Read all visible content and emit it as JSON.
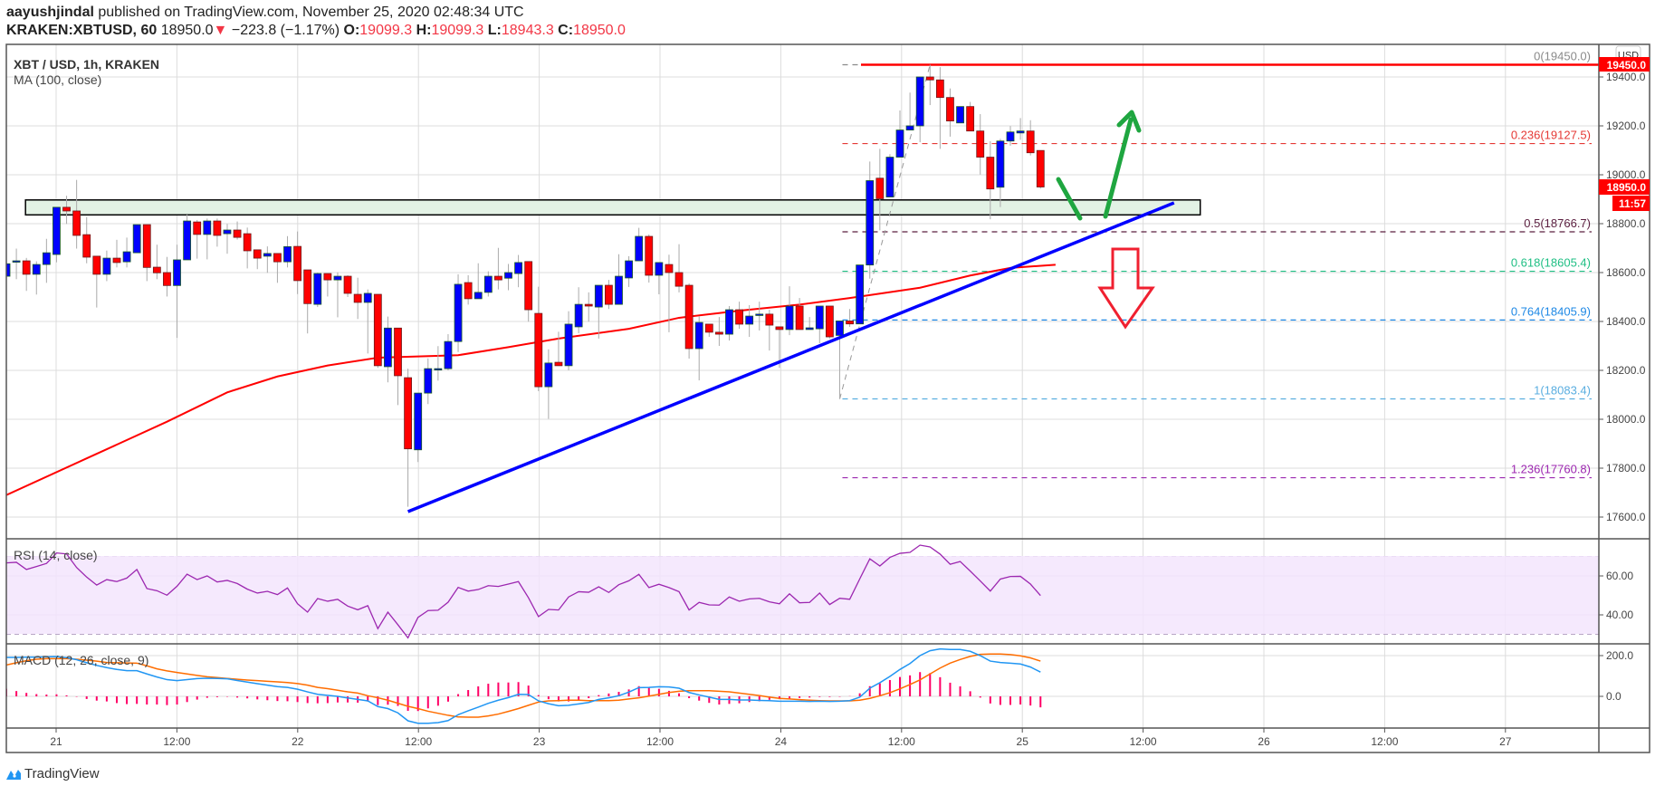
{
  "header": {
    "author": "aayushjindal",
    "published": "published on TradingView.com, November 25, 2020 02:48:34 UTC",
    "symbol": "KRAKEN:XBTUSD, 60",
    "last": "18950.0",
    "change": "−223.8 (−1.17%)",
    "o_label": "O:",
    "o": "19099.3",
    "h_label": "H:",
    "h": "19099.3",
    "l_label": "L:",
    "l": "18943.3",
    "c_label": "C:",
    "c": "18950.0"
  },
  "legend": {
    "title": "XBT / USD, 1h, KRAKEN",
    "ma": "MA (100, close)",
    "rsi": "RSI (14, close)",
    "macd": "MACD (12, 26, close, 9)"
  },
  "price_axis": {
    "currency": "USD",
    "ticks": [
      "19400.0",
      "19200.0",
      "19000.0",
      "18800.0",
      "18600.0",
      "18400.0",
      "18200.0",
      "18000.0",
      "17800.0",
      "17600.0"
    ],
    "high_badge": "19450.0",
    "last_badge": "18950.0",
    "countdown": "11:57"
  },
  "rsi_axis": {
    "ticks": [
      "60.00",
      "40.00"
    ]
  },
  "macd_axis": {
    "ticks": [
      "200.0",
      "0.0"
    ]
  },
  "time_axis": {
    "labels": [
      "21",
      "12:00",
      "22",
      "12:00",
      "23",
      "12:00",
      "24",
      "12:00",
      "25",
      "12:00",
      "26",
      "12:00",
      "27"
    ]
  },
  "footer": {
    "brand": "TradingView"
  },
  "colors": {
    "up": "#0000ff",
    "down": "#ff0000",
    "up_border": "#1b5e20",
    "down_border": "#6d1b1b",
    "ma": "#ff0000",
    "trendline": "#0000ff",
    "zone_fill": "#e3f2e5",
    "rsi_line": "#9c27b0",
    "rsi_band": "#f3e5fd",
    "macd": "#2196f3",
    "signal": "#ff6d00",
    "histogram": "#ff0066",
    "arrow_green": "#1fa640",
    "arrow_red": "#f02030",
    "resistance": "#ff0000"
  },
  "chart_data": {
    "type": "candlestick",
    "title": "XBT / USD, 1h, KRAKEN",
    "ylim": [
      17450,
      19560
    ],
    "candles_ohlc": [
      [
        18585,
        18650,
        18570,
        18636
      ],
      [
        18648,
        18698,
        18573,
        18648
      ],
      [
        18648,
        18660,
        18525,
        18593
      ],
      [
        18593,
        18646,
        18510,
        18633
      ],
      [
        18633,
        18738,
        18558,
        18681
      ],
      [
        18674,
        18867,
        18642,
        18867
      ],
      [
        18867,
        18914,
        18799,
        18852
      ],
      [
        18852,
        18979,
        18698,
        18752
      ],
      [
        18755,
        18827,
        18638,
        18663
      ],
      [
        18667,
        18667,
        18457,
        18593
      ],
      [
        18593,
        18690,
        18565,
        18659
      ],
      [
        18659,
        18734,
        18621,
        18641
      ],
      [
        18644,
        18743,
        18621,
        18685
      ],
      [
        18681,
        18796,
        18681,
        18796
      ],
      [
        18796,
        18796,
        18565,
        18621
      ],
      [
        18622,
        18714,
        18573,
        18599
      ],
      [
        18600,
        18664,
        18502,
        18547
      ],
      [
        18547,
        18714,
        18333,
        18652
      ],
      [
        18652,
        18837,
        18652,
        18811
      ],
      [
        18807,
        18815,
        18657,
        18756
      ],
      [
        18756,
        18821,
        18654,
        18811
      ],
      [
        18811,
        18821,
        18706,
        18752
      ],
      [
        18759,
        18799,
        18677,
        18774
      ],
      [
        18774,
        18809,
        18735,
        18744
      ],
      [
        18759,
        18784,
        18617,
        18689
      ],
      [
        18693,
        18693,
        18614,
        18659
      ],
      [
        18667,
        18707,
        18599,
        18678
      ],
      [
        18678,
        18678,
        18558,
        18644
      ],
      [
        18644,
        18749,
        18621,
        18706
      ],
      [
        18707,
        18768,
        18512,
        18567
      ],
      [
        18611,
        18611,
        18351,
        18473
      ],
      [
        18470,
        18600,
        18459,
        18596
      ],
      [
        18596,
        18596,
        18502,
        18570
      ],
      [
        18570,
        18601,
        18417,
        18585
      ],
      [
        18585,
        18589,
        18500,
        18515
      ],
      [
        18511,
        18579,
        18410,
        18478
      ],
      [
        18478,
        18531,
        18269,
        18515
      ],
      [
        18511,
        18511,
        18210,
        18219
      ],
      [
        18215,
        18420,
        18151,
        18373
      ],
      [
        18373,
        18373,
        18058,
        18178
      ],
      [
        18170,
        18207,
        17642,
        17879
      ],
      [
        17875,
        18107,
        17825,
        18107
      ],
      [
        18107,
        18249,
        18062,
        18207
      ],
      [
        18207,
        18299,
        18158,
        18207
      ],
      [
        18207,
        18348,
        18200,
        18318
      ],
      [
        18318,
        18593,
        18275,
        18552
      ],
      [
        18559,
        18589,
        18469,
        18493
      ],
      [
        18493,
        18638,
        18493,
        18519
      ],
      [
        18519,
        18605,
        18502,
        18585
      ],
      [
        18585,
        18701,
        18531,
        18570
      ],
      [
        18577,
        18635,
        18528,
        18600
      ],
      [
        18596,
        18672,
        18540,
        18641
      ],
      [
        18645,
        18645,
        18399,
        18448
      ],
      [
        18433,
        18542,
        18115,
        18133
      ],
      [
        18133,
        18286,
        18002,
        18230
      ],
      [
        18233,
        18358,
        18219,
        18219
      ],
      [
        18219,
        18442,
        18200,
        18389
      ],
      [
        18378,
        18540,
        18352,
        18470
      ],
      [
        18470,
        18519,
        18399,
        18463
      ],
      [
        18459,
        18548,
        18330,
        18548
      ],
      [
        18548,
        18570,
        18451,
        18470
      ],
      [
        18470,
        18675,
        18470,
        18585
      ],
      [
        18578,
        18667,
        18541,
        18648
      ],
      [
        18648,
        18783,
        18648,
        18748
      ],
      [
        18748,
        18756,
        18559,
        18589
      ],
      [
        18589,
        18641,
        18511,
        18641
      ],
      [
        18633,
        18673,
        18356,
        18600
      ],
      [
        18600,
        18716,
        18519,
        18544
      ],
      [
        18548,
        18556,
        18248,
        18289
      ],
      [
        18289,
        18422,
        18159,
        18396
      ],
      [
        18389,
        18389,
        18337,
        18356
      ],
      [
        18356,
        18418,
        18300,
        18348
      ],
      [
        18348,
        18463,
        18322,
        18448
      ],
      [
        18448,
        18481,
        18370,
        18389
      ],
      [
        18389,
        18467,
        18337,
        18422
      ],
      [
        18430,
        18481,
        18363,
        18430
      ],
      [
        18430,
        18448,
        18281,
        18385
      ],
      [
        18378,
        18378,
        18210,
        18367
      ],
      [
        18367,
        18544,
        18344,
        18463
      ],
      [
        18463,
        18496,
        18367,
        18367
      ],
      [
        18367,
        18418,
        18367,
        18374
      ],
      [
        18370,
        18463,
        18311,
        18463
      ],
      [
        18463,
        18463,
        18330,
        18337
      ],
      [
        18343,
        18402,
        18083,
        18402
      ],
      [
        18402,
        18451,
        18378,
        18390
      ],
      [
        18390,
        18631,
        18390,
        18631
      ],
      [
        18631,
        19054,
        18575,
        18976
      ],
      [
        18986,
        19106,
        18773,
        18902
      ],
      [
        18909,
        19084,
        18909,
        19072
      ],
      [
        19072,
        19263,
        19072,
        19183
      ],
      [
        19183,
        19336,
        19183,
        19200
      ],
      [
        19200,
        19400,
        19133,
        19400
      ],
      [
        19400,
        19450,
        19285,
        19388
      ],
      [
        19388,
        19440,
        19106,
        19316
      ],
      [
        19316,
        19353,
        19156,
        19220
      ],
      [
        19212,
        19279,
        19212,
        19279
      ],
      [
        19279,
        19298,
        19179,
        19179
      ],
      [
        19179,
        19248,
        19001,
        19072
      ],
      [
        19072,
        19137,
        18818,
        18942
      ],
      [
        18949,
        19147,
        18868,
        19138
      ],
      [
        19138,
        19199,
        19119,
        19175
      ],
      [
        19171,
        19232,
        19143,
        19179
      ],
      [
        19179,
        19223,
        19079,
        19090
      ],
      [
        19099.3,
        19099.3,
        18943.3,
        18950
      ]
    ],
    "ma100": [
      [
        0,
        17690
      ],
      [
        8,
        17840
      ],
      [
        16,
        17990
      ],
      [
        22,
        18110
      ],
      [
        27,
        18175
      ],
      [
        32,
        18220
      ],
      [
        37,
        18252
      ],
      [
        45,
        18262
      ],
      [
        50,
        18295
      ],
      [
        55,
        18330
      ],
      [
        62,
        18370
      ],
      [
        67,
        18415
      ],
      [
        73,
        18444
      ],
      [
        79,
        18469
      ],
      [
        84,
        18496
      ],
      [
        91,
        18538
      ],
      [
        96,
        18588
      ],
      [
        100,
        18619
      ],
      [
        104.5,
        18632
      ]
    ],
    "fib_retracement": {
      "from_candle": 83,
      "to_candle": 92,
      "levels": [
        {
          "label": "0(19450.0)",
          "price": 19450.0,
          "color": "#8a8a8a"
        },
        {
          "label": "0.236(19127.5)",
          "price": 19127.5,
          "color": "#e53935"
        },
        {
          "label": "0.5(18766.7)",
          "price": 18766.7,
          "color": "#5b1e3f"
        },
        {
          "label": "0.618(18605.4)",
          "price": 18605.4,
          "color": "#1fbf84"
        },
        {
          "label": "0.764(18405.9)",
          "price": 18405.9,
          "color": "#1e88e5"
        },
        {
          "label": "1(18083.4)",
          "price": 18083.4,
          "color": "#5aaee0"
        },
        {
          "label": "1.236(17760.8)",
          "price": 17760.8,
          "color": "#9c27b0"
        }
      ]
    },
    "resistance_line": 19450.0,
    "support_zone": {
      "low": 18836,
      "high": 18897,
      "from_candle": 2,
      "to_candle": 119
    },
    "trendline": {
      "from": [
        40,
        17622
      ],
      "to": [
        116.3,
        18885
      ]
    },
    "rsi": {
      "ylim": [
        24,
        78
      ],
      "bands": [
        30,
        70
      ],
      "values": [
        66.7,
        67,
        63.3,
        64.8,
        66.4,
        71.8,
        71.3,
        64.3,
        59.4,
        55.3,
        58.1,
        57.1,
        58.9,
        63.3,
        53.5,
        52.4,
        50.1,
        54.7,
        60.9,
        58.1,
        60,
        56.9,
        57.7,
        56.1,
        53.2,
        51.2,
        52.1,
        50.4,
        53.8,
        45.7,
        41.4,
        48.4,
        47,
        48,
        44.5,
        42.6,
        44.7,
        32.9,
        41.4,
        34.9,
        28.2,
        38.7,
        42.2,
        42.4,
        46.5,
        54.1,
        52.2,
        53,
        55,
        54.6,
        55.8,
        57.1,
        48.8,
        39.1,
        42.8,
        42.5,
        49.2,
        51.9,
        51.6,
        54.4,
        51.5,
        55.5,
        57.5,
        60.8,
        54,
        55.7,
        54,
        51.9,
        42.5,
        46.4,
        45.1,
        45,
        49.2,
        47,
        48.2,
        48.5,
        46.7,
        45.7,
        50.8,
        46.2,
        46.4,
        51.2,
        45.3,
        48.5,
        48,
        58.5,
        68.8,
        65.1,
        69.5,
        71.6,
        72.1,
        75.8,
        74.9,
        71.2,
        66,
        67.4,
        62.5,
        57.4,
        52.2,
        58.4,
        59.7,
        59.8,
        55.8,
        49.9
      ]
    },
    "macd": {
      "ylim": [
        -160,
        250
      ],
      "macd": [
        191,
        191,
        192,
        193,
        194,
        195,
        190,
        180,
        165,
        152,
        141,
        132,
        126,
        126,
        110,
        95,
        82,
        77,
        82,
        87,
        89,
        88,
        86,
        78,
        70,
        62,
        55,
        48,
        44,
        35,
        22,
        10,
        5,
        0,
        -8,
        -15,
        -22,
        -50,
        -60,
        -81,
        -120,
        -132,
        -132,
        -129,
        -119,
        -90,
        -71,
        -53,
        -34,
        -19,
        -6,
        10,
        9,
        -22,
        -36,
        -46,
        -44,
        -37,
        -30,
        -15,
        -7,
        3,
        21,
        43,
        44,
        47,
        46,
        40,
        19,
        7,
        -4,
        -15,
        -15,
        -18,
        -18,
        -20,
        -21,
        -24,
        -24,
        -24,
        -25,
        -24,
        -25,
        -24,
        -21,
        -4,
        40,
        67,
        98,
        132,
        161,
        200,
        224,
        233,
        230,
        230,
        221,
        200,
        173,
        166,
        163,
        159,
        144,
        119
      ],
      "signal": [
        154,
        165,
        175,
        182,
        185,
        185,
        185,
        182,
        178,
        173,
        166,
        165,
        164,
        163,
        150,
        135,
        125,
        117,
        110,
        103,
        96,
        92,
        88,
        84,
        80,
        77,
        74,
        71,
        68,
        63,
        55,
        44,
        38,
        30,
        22,
        16,
        3,
        -7,
        -19,
        -34,
        -49,
        -60,
        -73,
        -83,
        -93,
        -101,
        -102,
        -102,
        -96,
        -87,
        -74,
        -60,
        -44,
        -28,
        -22,
        -21,
        -19,
        -19,
        -21,
        -21,
        -21,
        -19,
        -13,
        -7,
        1,
        10,
        19,
        25,
        28,
        28,
        28,
        25,
        22,
        16,
        10,
        4,
        -4,
        -10,
        -13,
        -16,
        -19,
        -21,
        -22,
        -22,
        -22,
        -19,
        -10,
        3,
        18,
        37,
        58,
        81,
        110,
        139,
        163,
        181,
        196,
        206,
        208,
        208,
        205,
        199,
        189,
        173
      ],
      "histogram": [
        37,
        26,
        17,
        11,
        9,
        10,
        5,
        -2,
        -13,
        -21,
        -25,
        -33,
        -38,
        -37,
        -40,
        -40,
        -43,
        -40,
        -28,
        -16,
        -7,
        -4,
        -2,
        -6,
        -10,
        -15,
        -19,
        -23,
        -24,
        -28,
        -33,
        -34,
        -33,
        -30,
        -30,
        -31,
        -25,
        -43,
        -41,
        -47,
        -71,
        -72,
        -59,
        -46,
        -26,
        11,
        31,
        49,
        62,
        68,
        68,
        70,
        53,
        6,
        -14,
        -25,
        -25,
        -18,
        -9,
        6,
        14,
        22,
        34,
        50,
        43,
        37,
        27,
        15,
        -9,
        -21,
        -32,
        -40,
        -37,
        -34,
        -28,
        -24,
        -17,
        -14,
        -11,
        -8,
        -6,
        -3,
        -3,
        -2,
        1,
        15,
        50,
        64,
        80,
        95,
        103,
        119,
        114,
        94,
        67,
        49,
        25,
        -6,
        -35,
        -42,
        -42,
        -40,
        -45,
        -54
      ]
    }
  }
}
